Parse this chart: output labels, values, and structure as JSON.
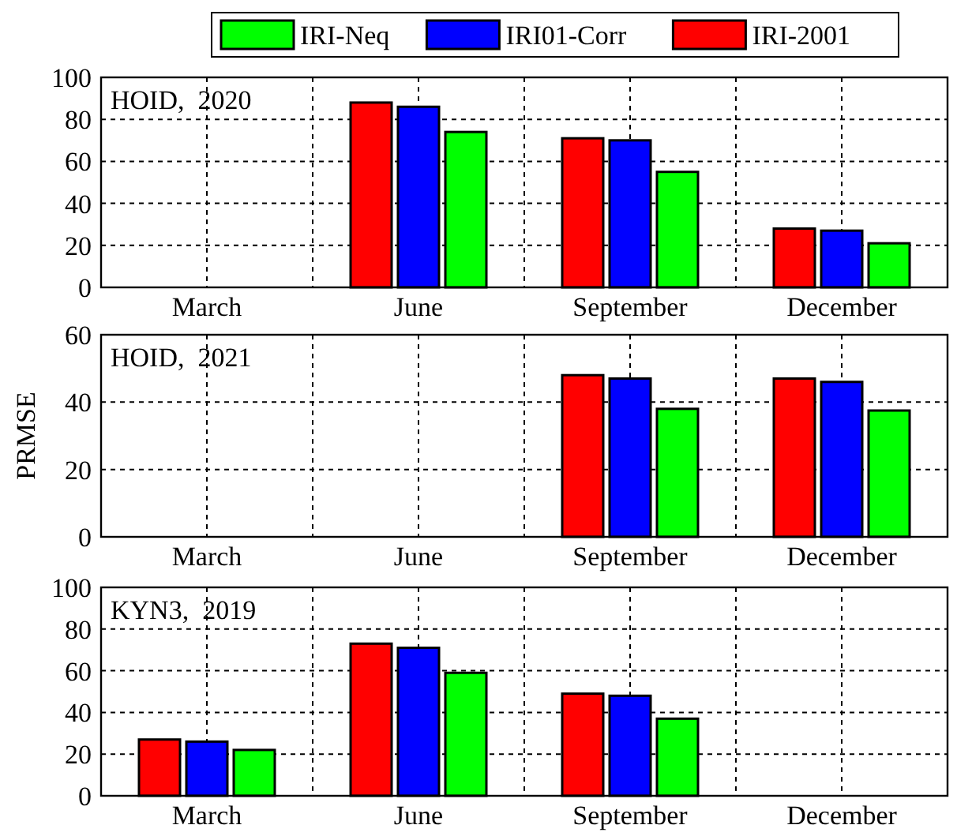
{
  "chart_data": [
    {
      "type": "bar",
      "categories": [
        "March",
        "June",
        "September",
        "December"
      ],
      "ylim": [
        0,
        100
      ],
      "yticks": [
        0,
        20,
        40,
        60,
        80,
        100
      ],
      "grid": true,
      "legend": "top",
      "annotations": [
        "HOID,  2020"
      ],
      "series": [
        {
          "name": "IRI-2001",
          "color": "#ff0000",
          "values": [
            null,
            88,
            71,
            28
          ]
        },
        {
          "name": "IRI01-Corr",
          "color": "#0000ff",
          "values": [
            null,
            86,
            70,
            27
          ]
        },
        {
          "name": "IRI-Neq",
          "color": "#00ff00",
          "values": [
            null,
            74,
            55,
            21
          ]
        }
      ]
    },
    {
      "type": "bar",
      "categories": [
        "March",
        "June",
        "September",
        "December"
      ],
      "ylim": [
        0,
        60
      ],
      "yticks": [
        0,
        20,
        40,
        60
      ],
      "grid": true,
      "ylabel": "PRMSE",
      "annotations": [
        "HOID,  2021"
      ],
      "series": [
        {
          "color": "#ff0000",
          "values": [
            null,
            null,
            48,
            47
          ]
        },
        {
          "color": "#0000ff",
          "values": [
            null,
            null,
            47,
            46
          ]
        },
        {
          "color": "#00ff00",
          "values": [
            null,
            null,
            38,
            37.5
          ]
        }
      ]
    },
    {
      "type": "bar",
      "categories": [
        "March",
        "June",
        "September",
        "December"
      ],
      "ylim": [
        0,
        100
      ],
      "yticks": [
        0,
        20,
        40,
        60,
        80,
        100
      ],
      "grid": true,
      "annotations": [
        "KYN3,  2019"
      ],
      "series": [
        {
          "color": "#ff0000",
          "values": [
            27,
            73,
            49,
            null
          ]
        },
        {
          "color": "#0000ff",
          "values": [
            26,
            71,
            48,
            null
          ]
        },
        {
          "color": "#00ff00",
          "values": [
            22,
            59,
            37,
            null
          ]
        }
      ]
    }
  ]
}
